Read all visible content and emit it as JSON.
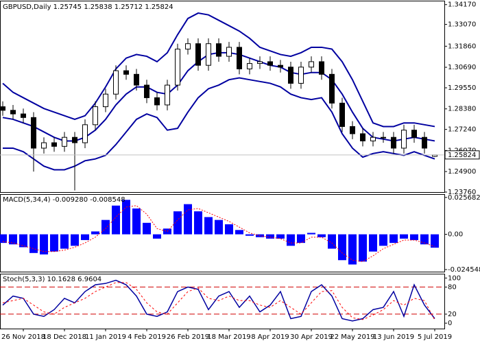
{
  "chart_data": [
    {
      "type": "candlestick",
      "title": "GBPUSD,Daily  1.25745 1.25838 1.25712 1.25824",
      "categories": [
        null,
        null,
        "26 Nov 2018",
        null,
        null,
        null,
        "18 Dec 2018",
        null,
        null,
        null,
        "11 Jan 2019",
        null,
        null,
        null,
        "4 Feb 2019",
        null,
        null,
        null,
        "26 Feb 2019",
        null,
        null,
        null,
        "18 Mar 2019",
        null,
        null,
        null,
        "8 Apr 2019",
        null,
        null,
        null,
        "30 Apr 2019",
        null,
        null,
        null,
        "22 May 2019",
        null,
        null,
        null,
        "13 Jun 2019",
        null,
        null,
        null,
        "5 Jul 2019"
      ],
      "open": [
        1.285,
        1.283,
        1.281,
        1.279,
        1.262,
        1.265,
        1.263,
        1.268,
        1.265,
        1.275,
        1.285,
        1.292,
        1.305,
        1.303,
        1.297,
        1.29,
        1.286,
        1.297,
        1.317,
        1.32,
        1.308,
        1.32,
        1.313,
        1.318,
        1.306,
        1.309,
        1.31,
        1.308,
        1.307,
        1.298,
        1.307,
        1.31,
        1.303,
        1.287,
        1.274,
        1.27,
        1.266,
        1.268,
        1.268,
        1.262,
        1.272,
        1.268,
        1.25745
      ],
      "high": [
        1.288,
        1.286,
        1.284,
        1.282,
        1.268,
        1.268,
        1.271,
        1.271,
        1.278,
        1.288,
        1.295,
        1.308,
        1.308,
        1.306,
        1.3,
        1.293,
        1.3,
        1.32,
        1.323,
        1.323,
        1.323,
        1.323,
        1.321,
        1.321,
        1.312,
        1.313,
        1.313,
        1.311,
        1.31,
        1.31,
        1.313,
        1.313,
        1.306,
        1.29,
        1.277,
        1.273,
        1.271,
        1.271,
        1.271,
        1.275,
        1.275,
        1.271,
        1.25838
      ],
      "low": [
        1.28,
        1.278,
        1.276,
        1.249,
        1.259,
        1.26,
        1.26,
        1.2385,
        1.262,
        1.272,
        1.282,
        1.289,
        1.3,
        1.294,
        1.287,
        1.283,
        1.283,
        1.294,
        1.314,
        1.305,
        1.305,
        1.31,
        1.31,
        1.303,
        1.303,
        1.306,
        1.305,
        1.304,
        1.295,
        1.295,
        1.304,
        1.3,
        1.284,
        1.271,
        1.267,
        1.263,
        1.263,
        1.265,
        1.259,
        1.259,
        1.265,
        1.259,
        1.25712
      ],
      "close": [
        1.283,
        1.281,
        1.279,
        1.262,
        1.265,
        1.263,
        1.268,
        1.265,
        1.275,
        1.285,
        1.292,
        1.305,
        1.303,
        1.297,
        1.29,
        1.286,
        1.297,
        1.317,
        1.32,
        1.308,
        1.32,
        1.313,
        1.318,
        1.306,
        1.309,
        1.31,
        1.308,
        1.307,
        1.298,
        1.307,
        1.31,
        1.303,
        1.287,
        1.274,
        1.27,
        1.266,
        1.268,
        1.268,
        1.262,
        1.272,
        1.268,
        1.262,
        1.25824
      ],
      "series": [
        {
          "color": "#0000a0",
          "values": [
            1.298,
            1.293,
            1.29,
            1.287,
            1.284,
            1.282,
            1.28,
            1.278,
            1.28,
            1.287,
            1.296,
            1.306,
            1.312,
            1.314,
            1.313,
            1.31,
            1.315,
            1.325,
            1.334,
            1.337,
            1.336,
            1.333,
            1.33,
            1.327,
            1.323,
            1.318,
            1.316,
            1.314,
            1.313,
            1.315,
            1.318,
            1.318,
            1.317,
            1.31,
            1.3,
            1.288,
            1.276,
            1.274,
            1.274,
            1.276,
            1.276,
            1.275,
            1.274
          ]
        },
        {
          "color": "#0000a0",
          "values": [
            1.279,
            1.278,
            1.276,
            1.274,
            1.271,
            1.268,
            1.266,
            1.266,
            1.268,
            1.272,
            1.278,
            1.286,
            1.292,
            1.296,
            1.296,
            1.293,
            1.292,
            1.297,
            1.305,
            1.31,
            1.314,
            1.315,
            1.315,
            1.314,
            1.312,
            1.31,
            1.308,
            1.307,
            1.304,
            1.303,
            1.304,
            1.304,
            1.3,
            1.292,
            1.282,
            1.273,
            1.268,
            1.267,
            1.266,
            1.267,
            1.268,
            1.267,
            1.266
          ]
        },
        {
          "color": "#0000a0",
          "values": [
            1.262,
            1.262,
            1.26,
            1.256,
            1.252,
            1.25,
            1.25,
            1.252,
            1.255,
            1.256,
            1.258,
            1.264,
            1.271,
            1.278,
            1.281,
            1.279,
            1.272,
            1.273,
            1.282,
            1.29,
            1.295,
            1.297,
            1.3,
            1.301,
            1.3,
            1.299,
            1.298,
            1.296,
            1.292,
            1.29,
            1.289,
            1.29,
            1.282,
            1.27,
            1.262,
            1.257,
            1.259,
            1.26,
            1.259,
            1.258,
            1.26,
            1.258,
            1.256
          ]
        }
      ],
      "ylim": [
        1.2376,
        1.3435
      ],
      "yticks": [
        {
          "value": 1.3417,
          "label": "1.34170"
        },
        {
          "value": 1.3307,
          "label": "1.33070"
        },
        {
          "value": 1.3186,
          "label": "1.31860"
        },
        {
          "value": 1.3069,
          "label": "1.30690"
        },
        {
          "value": 1.2955,
          "label": "1.29550"
        },
        {
          "value": 1.2838,
          "label": "1.28380"
        },
        {
          "value": 1.2724,
          "label": "1.27240"
        },
        {
          "value": 1.2607,
          "label": "1.26070"
        },
        {
          "value": 1.249,
          "label": "1.24900"
        },
        {
          "value": 1.2376,
          "label": "1.23760"
        }
      ]
    },
    {
      "type": "macd",
      "title": "MACD(5,34,4) -0.009280 -0.008548",
      "series": [
        {
          "kind": "bar",
          "color": "#0000ff",
          "values": [
            -0.006,
            -0.007,
            -0.009,
            -0.013,
            -0.014,
            -0.012,
            -0.01,
            -0.008,
            -0.004,
            0.002,
            0.01,
            0.02,
            0.024,
            0.018,
            0.008,
            -0.003,
            0.004,
            0.016,
            0.021,
            0.016,
            0.012,
            0.01,
            0.007,
            0.003,
            -0.001,
            -0.002,
            -0.003,
            -0.003,
            -0.008,
            -0.006,
            0.001,
            -0.002,
            -0.01,
            -0.018,
            -0.021,
            -0.019,
            -0.012,
            -0.008,
            -0.006,
            -0.003,
            -0.004,
            -0.007,
            -0.00928
          ]
        },
        {
          "kind": "line",
          "color": "#ff0000",
          "dash": "2,2",
          "values": [
            -0.005,
            -0.006,
            -0.008,
            -0.01,
            -0.012,
            -0.012,
            -0.011,
            -0.009,
            -0.006,
            -0.002,
            0.004,
            0.012,
            0.019,
            0.02,
            0.014,
            0.004,
            0.002,
            0.01,
            0.017,
            0.018,
            0.015,
            0.012,
            0.009,
            0.005,
            0.001,
            -0.001,
            -0.002,
            -0.003,
            -0.006,
            -0.006,
            -0.002,
            -0.002,
            -0.006,
            -0.013,
            -0.018,
            -0.019,
            -0.015,
            -0.01,
            -0.007,
            -0.004,
            -0.004,
            -0.006,
            -0.008548
          ]
        }
      ],
      "ylim": [
        -0.026,
        0.0275
      ],
      "yticks": [
        0.025682,
        {
          "value": 0,
          "label": "0.00"
        },
        -0.024548
      ]
    },
    {
      "type": "stochastic",
      "title": "Stoch(5,3,3) 10.1628 6.9604",
      "series": [
        {
          "kind": "line",
          "color": "#0000a0",
          "values": [
            40,
            60,
            55,
            20,
            15,
            30,
            55,
            45,
            70,
            85,
            88,
            95,
            85,
            60,
            20,
            15,
            25,
            70,
            80,
            75,
            30,
            60,
            70,
            35,
            60,
            25,
            40,
            70,
            10,
            15,
            70,
            85,
            60,
            10,
            5,
            10,
            30,
            35,
            70,
            15,
            85,
            40,
            10.1628
          ]
        },
        {
          "kind": "line",
          "color": "#ff0000",
          "dash": "3,3",
          "values": [
            45,
            50,
            55,
            40,
            25,
            20,
            35,
            45,
            55,
            70,
            80,
            90,
            90,
            75,
            45,
            25,
            20,
            45,
            70,
            78,
            55,
            50,
            60,
            50,
            50,
            40,
            35,
            50,
            35,
            20,
            45,
            70,
            72,
            35,
            12,
            8,
            18,
            30,
            50,
            40,
            55,
            50,
            6.9604
          ]
        }
      ],
      "levels": [
        80,
        20
      ],
      "level_color": "#d00000",
      "ylim": [
        -12,
        108
      ],
      "yticks": [
        100,
        80,
        20,
        0
      ]
    }
  ]
}
